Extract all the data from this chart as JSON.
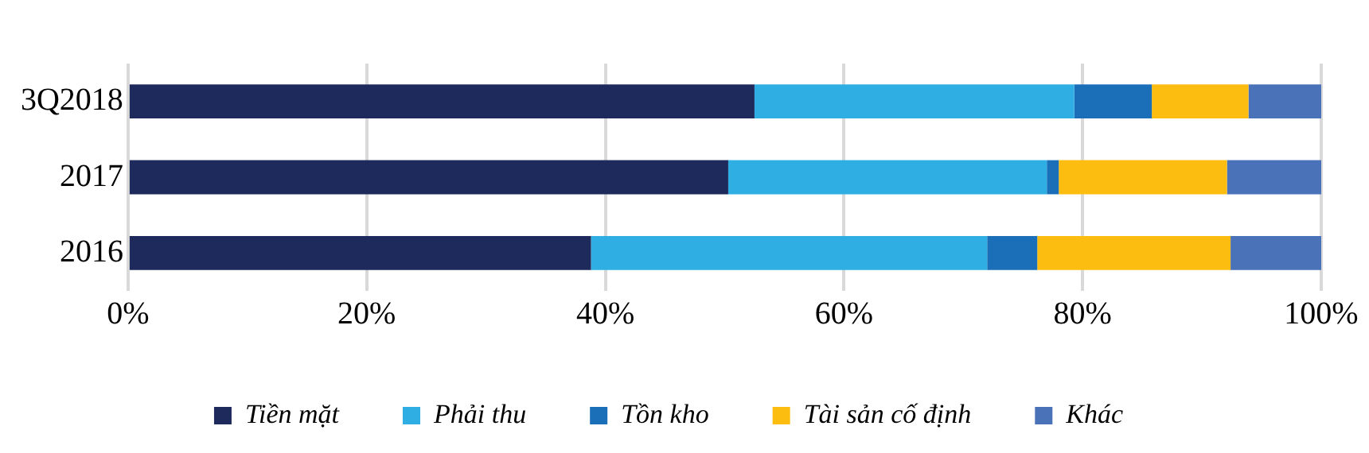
{
  "chart_data": {
    "type": "bar",
    "orientation": "horizontal",
    "stacked": true,
    "categories": [
      "3Q2018",
      "2017",
      "2016"
    ],
    "series": [
      {
        "name": "Tiền mặt",
        "color": "#1f2a5c",
        "values": [
          52.5,
          50.3,
          38.8
        ]
      },
      {
        "name": "Phải thu",
        "color": "#2eaee3",
        "values": [
          26.8,
          26.7,
          33.2
        ]
      },
      {
        "name": "Tồn kho",
        "color": "#1b6fb8",
        "values": [
          6.5,
          1.0,
          4.2
        ]
      },
      {
        "name": "Tài sản cố định",
        "color": "#fdbd10",
        "values": [
          8.1,
          14.1,
          16.2
        ]
      },
      {
        "name": "Khác",
        "color": "#4a72b8",
        "values": [
          6.1,
          7.9,
          7.6
        ]
      }
    ],
    "xlim": [
      0,
      100
    ],
    "xticks": [
      {
        "value": 0,
        "label": "0%"
      },
      {
        "value": 20,
        "label": "20%"
      },
      {
        "value": 40,
        "label": "40%"
      },
      {
        "value": 60,
        "label": "60%"
      },
      {
        "value": 80,
        "label": "80%"
      },
      {
        "value": 100,
        "label": "100%"
      }
    ],
    "grid": "x",
    "legend": "bottom"
  }
}
